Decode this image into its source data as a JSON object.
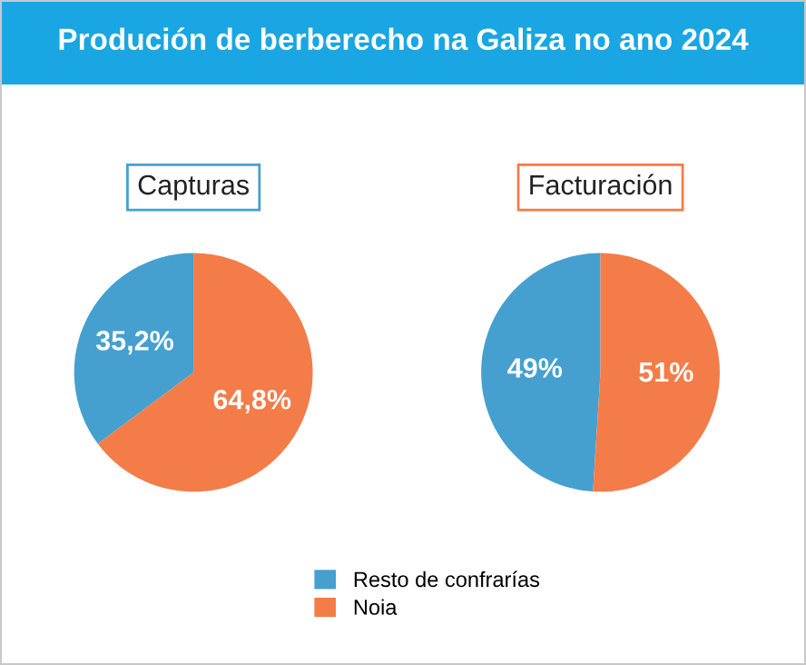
{
  "chart_data": [
    {
      "type": "pie",
      "title": "Capturas",
      "categories": [
        "Resto de confrarías",
        "Noia"
      ],
      "values": [
        35.2,
        64.8
      ],
      "colors": [
        "#45a0d0",
        "#f47c48"
      ],
      "value_labels": [
        "35,2%",
        "64,8%"
      ],
      "legend": "bottom",
      "annotations": [
        "Produción de berberecho na Galiza no ano 2024"
      ]
    },
    {
      "type": "pie",
      "title": "Facturación",
      "categories": [
        null,
        null
      ],
      "values": [
        49,
        51
      ],
      "colors": [
        "#45a0d0",
        "#f47c48"
      ],
      "value_labels": [
        "49%",
        "51%"
      ]
    }
  ]
}
